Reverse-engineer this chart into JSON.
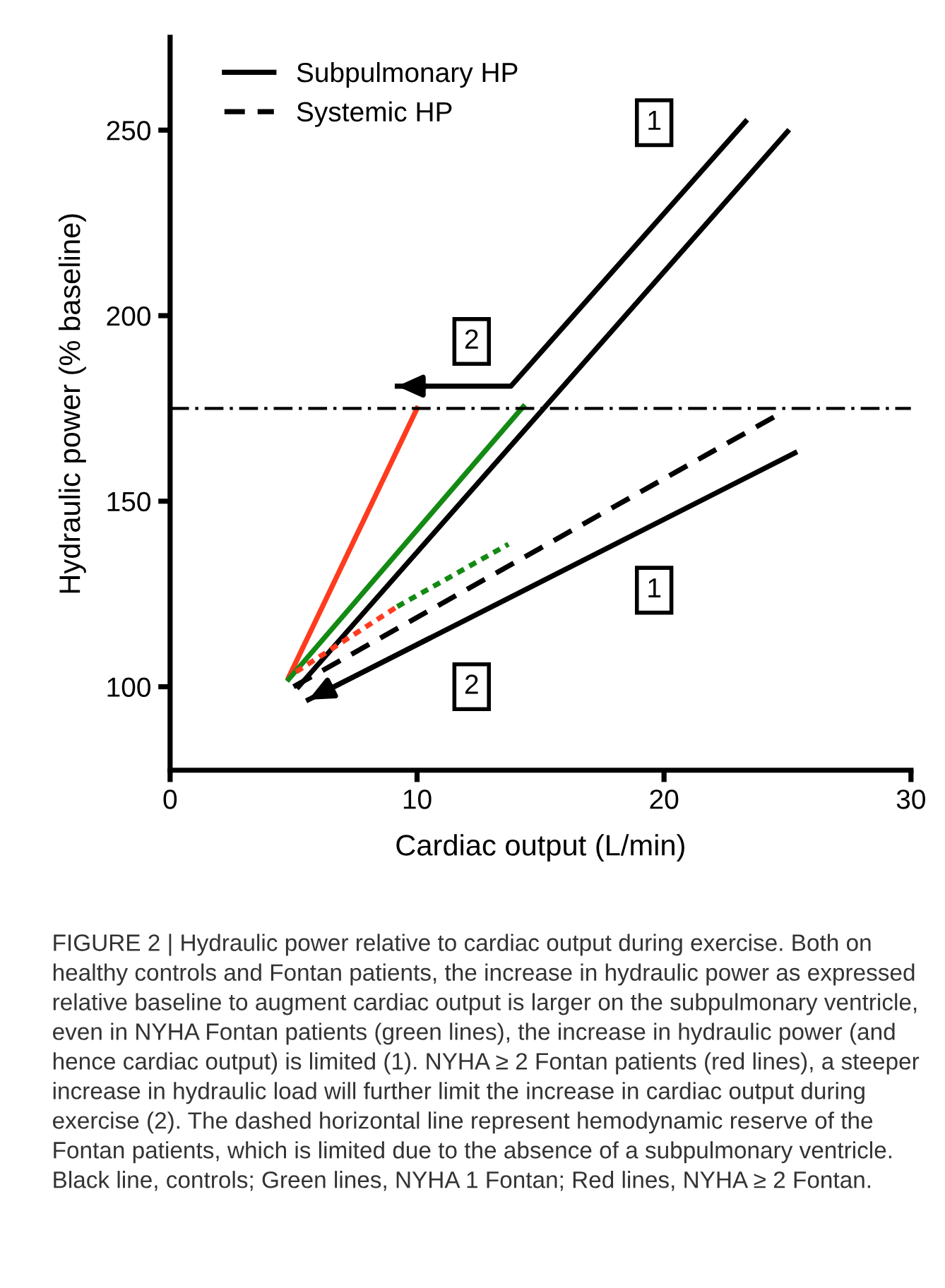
{
  "chart_data": {
    "type": "line",
    "xlabel": "Cardiac output (L/min)",
    "ylabel": "Hydraulic power (% baseline)",
    "xlim": [
      0,
      30
    ],
    "xticks": [
      0,
      10,
      20,
      30
    ],
    "ylim": [
      77.5,
      275
    ],
    "yticks": [
      100,
      150,
      200,
      250
    ],
    "grid": false,
    "legend": "top left",
    "marker": "none",
    "series": [
      {
        "name": "Subpulmonary HP",
        "color": "#000000",
        "line_style": "solid",
        "x": [
          5.2,
          25.0
        ],
        "values": [
          100,
          249.6
        ]
      },
      {
        "name": "Systemic HP",
        "color": "#000000",
        "line_style": "dashed",
        "x": [
          5.0,
          24.8
        ],
        "values": [
          100,
          174
        ]
      },
      {
        "color": "#000000",
        "line_style": "solid",
        "x": [
          9.2,
          13.8,
          23.3
        ],
        "values": [
          181,
          181,
          252.3
        ]
      },
      {
        "color": "#000000",
        "line_style": "solid",
        "x": [
          5.6,
          25.3
        ],
        "values": [
          96.5,
          163
        ]
      },
      {
        "color": "#ff3b1f",
        "line_style": "solid",
        "x": [
          4.8,
          10.0
        ],
        "values": [
          102.5,
          175
        ]
      },
      {
        "color": "#138a13",
        "line_style": "solid",
        "x": [
          4.8,
          14.3
        ],
        "values": [
          102,
          175.5
        ]
      },
      {
        "color": "#ff3b1f",
        "line_style": "dotted",
        "x": [
          5.1,
          9.2
        ],
        "values": [
          104,
          121.6
        ]
      },
      {
        "color": "#138a13",
        "line_style": "dotted",
        "x": [
          9.2,
          13.7
        ],
        "values": [
          121.6,
          138.4
        ]
      }
    ],
    "ref_lines": [
      {
        "axis": "y",
        "value": 175,
        "line_style": "dashdot",
        "color": "#000000"
      }
    ],
    "annotations": [
      {
        "text": "1",
        "x": 19.6,
        "y": 252
      },
      {
        "text": "1",
        "x": 19.6,
        "y": 126
      },
      "2",
      "2",
      "FIGURE 2 | Hydraulic power relative to cardiac output during exercise. Both on healthy controls and Fontan patients, the increase in hydraulic power as expressed relative baseline to augment cardiac output is larger on the subpulmonary ventricle, even in NYHA Fontan patients (green lines), the increase in hydraulic power (and hence cardiac output) is limited (1). NYHA ≥ 2 Fontan patients (red lines), a steeper increase in hydraulic load will further limit the increase in cardiac output during exercise (2). The dashed horizontal line represent hemodynamic reserve of the Fontan patients, which is limited due to the absence of a subpulmonary ventricle. Black line, controls; Green lines, NYHA 1 Fontan; Red lines, NYHA ≥ 2 Fontan."
    ]
  }
}
